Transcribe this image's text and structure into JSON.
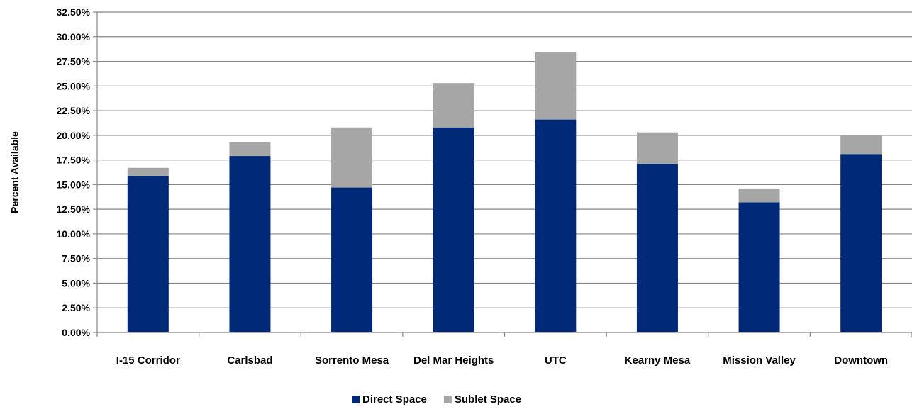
{
  "chart_data": {
    "type": "bar",
    "stacked": true,
    "title": "",
    "xlabel": "",
    "ylabel": "Percent Available",
    "ylim": [
      0,
      32.5
    ],
    "y_tick_step": 2.5,
    "y_tick_labels": [
      "0.00%",
      "2.50%",
      "5.00%",
      "7.50%",
      "10.00%",
      "12.50%",
      "15.00%",
      "17.50%",
      "20.00%",
      "22.50%",
      "25.00%",
      "27.50%",
      "30.00%",
      "32.50%"
    ],
    "grid": true,
    "legend_position": "bottom",
    "categories": [
      "I-15 Corridor",
      "Carlsbad",
      "Sorrento Mesa",
      "Del Mar Heights",
      "UTC",
      "Kearny Mesa",
      "Mission Valley",
      "Downtown"
    ],
    "series": [
      {
        "name": "Direct Space",
        "color": "#002a77",
        "values": [
          15.9,
          17.9,
          14.7,
          20.8,
          21.6,
          17.1,
          13.2,
          18.1
        ]
      },
      {
        "name": "Sublet Space",
        "color": "#a6a6a6",
        "values": [
          0.8,
          1.4,
          6.1,
          4.5,
          6.8,
          3.2,
          1.4,
          1.9
        ]
      }
    ]
  }
}
